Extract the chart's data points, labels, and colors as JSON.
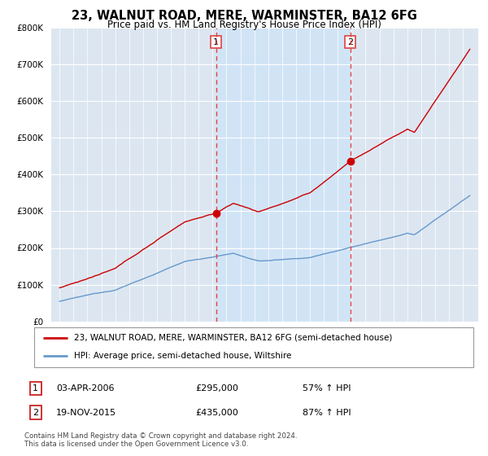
{
  "title": "23, WALNUT ROAD, MERE, WARMINSTER, BA12 6FG",
  "subtitle": "Price paid vs. HM Land Registry's House Price Index (HPI)",
  "legend_line1": "23, WALNUT ROAD, MERE, WARMINSTER, BA12 6FG (semi-detached house)",
  "legend_line2": "HPI: Average price, semi-detached house, Wiltshire",
  "sale1_date": "03-APR-2006",
  "sale1_price": "£295,000",
  "sale1_hpi": "57% ↑ HPI",
  "sale2_date": "19-NOV-2015",
  "sale2_price": "£435,000",
  "sale2_hpi": "87% ↑ HPI",
  "footnote": "Contains HM Land Registry data © Crown copyright and database right 2024.\nThis data is licensed under the Open Government Licence v3.0.",
  "red_color": "#cc0000",
  "blue_color": "#6699cc",
  "shade_color": "#d0e4f7",
  "vline_color": "#dd4444",
  "background_color": "#dce6f1",
  "ylim": [
    0,
    800000
  ],
  "yticks": [
    0,
    100000,
    200000,
    300000,
    400000,
    500000,
    600000,
    700000,
    800000
  ],
  "sale1_x": 2006.25,
  "sale1_y": 295000,
  "sale2_x": 2015.89,
  "sale2_y": 435000,
  "xmin": 1995,
  "xmax": 2024.5
}
